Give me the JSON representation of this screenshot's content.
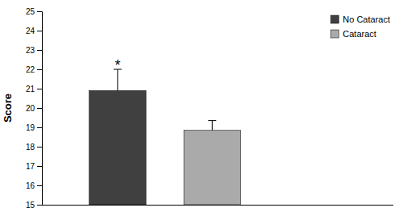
{
  "chart_data": {
    "type": "bar",
    "categories": [
      "No Cataract",
      "Cataract"
    ],
    "values": [
      20.9,
      18.85
    ],
    "errors_upper": [
      1.1,
      0.5
    ],
    "colors": [
      "#404040",
      "#aaaaaa"
    ],
    "ylim": [
      15,
      25
    ],
    "yticks": [
      15,
      16,
      17,
      18,
      19,
      20,
      21,
      22,
      23,
      24,
      25
    ],
    "ylabel": "Score",
    "legend": "upper right",
    "tick_labels": "y",
    "annotations": [
      {
        "text": "*",
        "x": "No Cataract",
        "y": 22.2
      }
    ]
  }
}
